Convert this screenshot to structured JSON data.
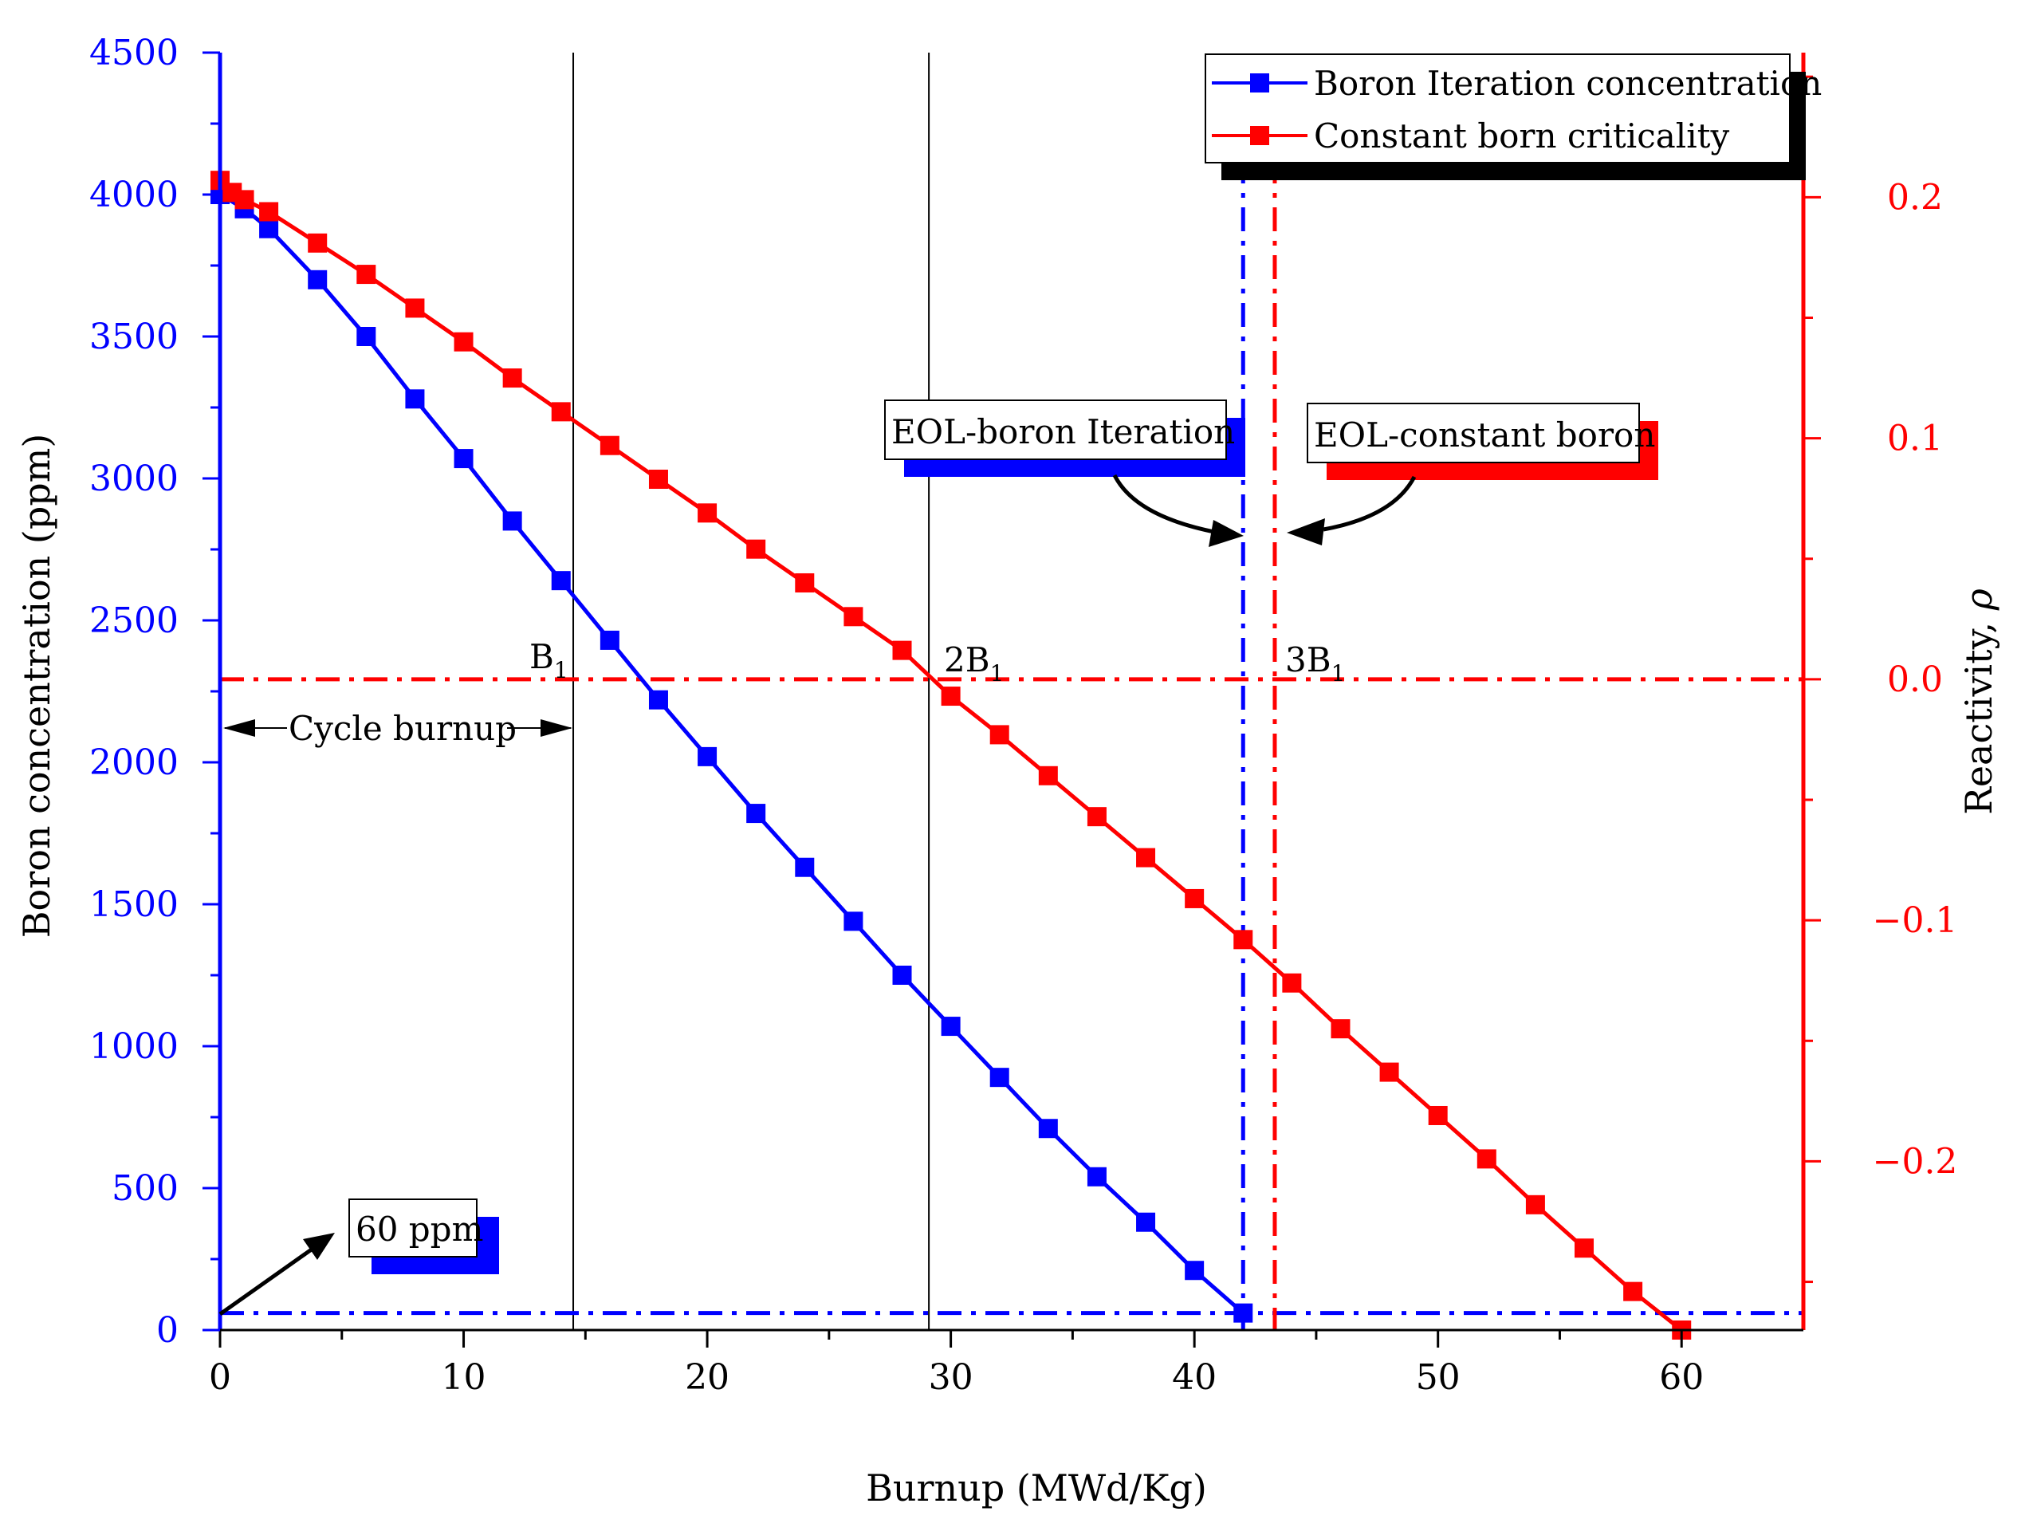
{
  "chart_data": {
    "type": "line",
    "xlabel": "Burnup (MWd/Kg)",
    "ylabel_left": "Boron concentration (ppm)",
    "ylabel_right": "Reactivity, ",
    "ylabel_right_symbol": "ρ",
    "xlim": [
      0,
      65
    ],
    "ylim_left": [
      0,
      4500
    ],
    "ylim_right": [
      -0.27,
      0.26
    ],
    "x_ticks": [
      0,
      10,
      20,
      30,
      40,
      50,
      60
    ],
    "y_left_ticks": [
      0,
      500,
      1000,
      1500,
      2000,
      2500,
      3000,
      3500,
      4000,
      4500
    ],
    "y_right_ticks": [
      0.2,
      0.1,
      0.0,
      -0.1,
      -0.2
    ],
    "y_right_tick_labels": [
      "0.2",
      "0.1",
      "0.0",
      "−0.1",
      "−0.2"
    ],
    "grid": false,
    "legend_position": "top-right",
    "series": [
      {
        "name": "Boron Iteration concentration",
        "axis": "left",
        "color": "#0000ff",
        "marker": "square",
        "x": [
          0,
          1,
          2,
          4,
          6,
          8,
          10,
          12,
          14,
          16,
          18,
          20,
          22,
          24,
          26,
          28,
          30,
          32,
          34,
          36,
          38,
          40,
          42
        ],
        "y": [
          4000,
          3950,
          3880,
          3700,
          3500,
          3280,
          3070,
          2850,
          2640,
          2430,
          2220,
          2020,
          1820,
          1630,
          1440,
          1250,
          1070,
          890,
          710,
          540,
          380,
          210,
          60
        ]
      },
      {
        "name": "Constant born criticality",
        "axis": "right",
        "color": "#ff0000",
        "marker": "square",
        "x": [
          0,
          0.5,
          1,
          2,
          4,
          6,
          8,
          10,
          12,
          14,
          16,
          18,
          20,
          22,
          24,
          26,
          28,
          30,
          32,
          34,
          36,
          38,
          40,
          42,
          44,
          46,
          48,
          50,
          52,
          54,
          56,
          58,
          60
        ],
        "y": [
          0.207,
          0.202,
          0.199,
          0.194,
          0.181,
          0.168,
          0.154,
          0.14,
          0.125,
          0.111,
          0.097,
          0.083,
          0.069,
          0.054,
          0.04,
          0.026,
          0.012,
          -0.007,
          -0.023,
          -0.04,
          -0.057,
          -0.074,
          -0.091,
          -0.108,
          -0.126,
          -0.145,
          -0.163,
          -0.181,
          -0.199,
          -0.218,
          -0.236,
          -0.254,
          -0.27
        ]
      }
    ],
    "reference_lines": {
      "cycle_burnup_vlines_x": [
        14.5,
        29.1
      ],
      "eol_boron_iteration_x": 42,
      "eol_constant_boron_x": 43.3,
      "zero_reactivity_y": 0.0,
      "boron_limit_ppm": 60
    },
    "annotations": {
      "b1": "B",
      "b1_sub": "1",
      "two_b1": "2B",
      "two_b1_sub": "1",
      "three_b1": "3B",
      "three_b1_sub": "1",
      "cycle_burnup": "Cycle burnup",
      "eol_boron_iteration": "EOL-boron Iteration",
      "eol_constant_boron": "EOL-constant boron",
      "ppm_60": "60 ppm"
    }
  }
}
